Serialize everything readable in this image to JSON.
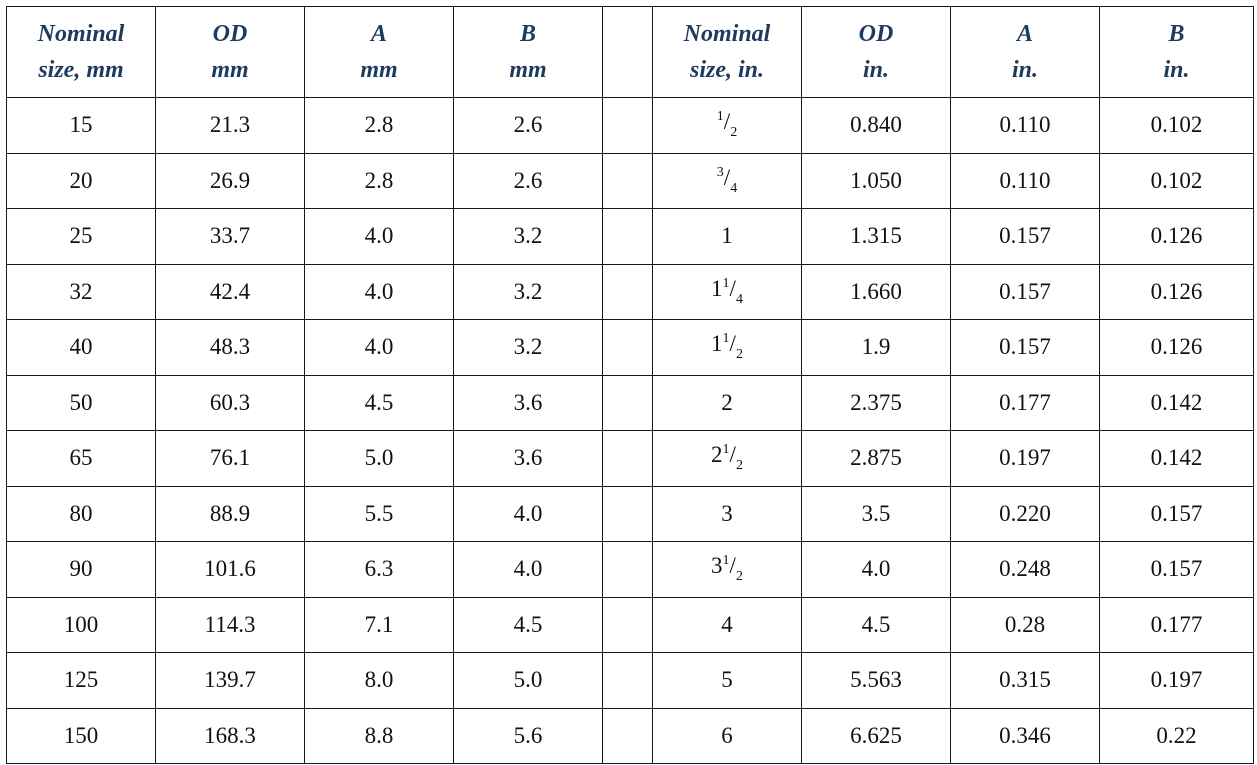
{
  "headers": {
    "metric": [
      {
        "line1": "Nominal",
        "line2": "size, mm"
      },
      {
        "line1": "OD",
        "line2": "mm"
      },
      {
        "line1": "A",
        "line2": "mm"
      },
      {
        "line1": "B",
        "line2": "mm"
      }
    ],
    "imperial": [
      {
        "line1": "Nominal",
        "line2": "size, in."
      },
      {
        "line1": "OD",
        "line2": "in."
      },
      {
        "line1": "A",
        "line2": "in."
      },
      {
        "line1": "B",
        "line2": "in."
      }
    ]
  },
  "rows": [
    {
      "metric": [
        "15",
        "21.3",
        "2.8",
        "2.6"
      ],
      "nominal_in": {
        "whole": "",
        "num": "1",
        "den": "2"
      },
      "imperial": [
        "0.840",
        "0.110",
        "0.102"
      ]
    },
    {
      "metric": [
        "20",
        "26.9",
        "2.8",
        "2.6"
      ],
      "nominal_in": {
        "whole": "",
        "num": "3",
        "den": "4"
      },
      "imperial": [
        "1.050",
        "0.110",
        "0.102"
      ]
    },
    {
      "metric": [
        "25",
        "33.7",
        "4.0",
        "3.2"
      ],
      "nominal_in": {
        "whole": "1",
        "num": "",
        "den": ""
      },
      "imperial": [
        "1.315",
        "0.157",
        "0.126"
      ]
    },
    {
      "metric": [
        "32",
        "42.4",
        "4.0",
        "3.2"
      ],
      "nominal_in": {
        "whole": "1",
        "num": "1",
        "den": "4"
      },
      "imperial": [
        "1.660",
        "0.157",
        "0.126"
      ]
    },
    {
      "metric": [
        "40",
        "48.3",
        "4.0",
        "3.2"
      ],
      "nominal_in": {
        "whole": "1",
        "num": "1",
        "den": "2"
      },
      "imperial": [
        "1.9",
        "0.157",
        "0.126"
      ]
    },
    {
      "metric": [
        "50",
        "60.3",
        "4.5",
        "3.6"
      ],
      "nominal_in": {
        "whole": "2",
        "num": "",
        "den": ""
      },
      "imperial": [
        "2.375",
        "0.177",
        "0.142"
      ]
    },
    {
      "metric": [
        "65",
        "76.1",
        "5.0",
        "3.6"
      ],
      "nominal_in": {
        "whole": "2",
        "num": "1",
        "den": "2"
      },
      "imperial": [
        "2.875",
        "0.197",
        "0.142"
      ]
    },
    {
      "metric": [
        "80",
        "88.9",
        "5.5",
        "4.0"
      ],
      "nominal_in": {
        "whole": "3",
        "num": "",
        "den": ""
      },
      "imperial": [
        "3.5",
        "0.220",
        "0.157"
      ]
    },
    {
      "metric": [
        "90",
        "101.6",
        "6.3",
        "4.0"
      ],
      "nominal_in": {
        "whole": "3",
        "num": "1",
        "den": "2"
      },
      "imperial": [
        "4.0",
        "0.248",
        "0.157"
      ]
    },
    {
      "metric": [
        "100",
        "114.3",
        "7.1",
        "4.5"
      ],
      "nominal_in": {
        "whole": "4",
        "num": "",
        "den": ""
      },
      "imperial": [
        "4.5",
        "0.28",
        "0.177"
      ]
    },
    {
      "metric": [
        "125",
        "139.7",
        "8.0",
        "5.0"
      ],
      "nominal_in": {
        "whole": "5",
        "num": "",
        "den": ""
      },
      "imperial": [
        "5.563",
        "0.315",
        "0.197"
      ]
    },
    {
      "metric": [
        "150",
        "168.3",
        "8.8",
        "5.6"
      ],
      "nominal_in": {
        "whole": "6",
        "num": "",
        "den": ""
      },
      "imperial": [
        "6.625",
        "0.346",
        "0.22"
      ]
    }
  ],
  "colors": {
    "header_text": "#1f3a5f",
    "body_text": "#111111",
    "grid": "#1a1a1a"
  }
}
